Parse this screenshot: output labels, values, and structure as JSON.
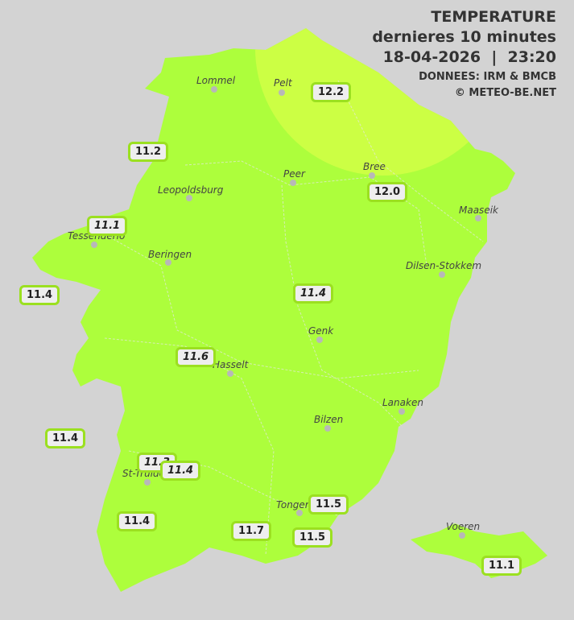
{
  "header": {
    "title": "TEMPERATURE",
    "subtitle": "dernieres 10 minutes",
    "datetime": "18-04-2026  |  23:20",
    "source": "DONNEES: IRM & BMCB",
    "copyright": "© METEO-BE.NET"
  },
  "colors": {
    "background": "#d3d3d3",
    "zone_11_12": "#adfe3c",
    "zone_12_13": "#ccff44",
    "label_border": "#9be020"
  },
  "cities": [
    {
      "name": "Lommel"
    },
    {
      "name": "Pelt"
    },
    {
      "name": "Peer"
    },
    {
      "name": "Bree"
    },
    {
      "name": "Leopoldsburg"
    },
    {
      "name": "Maaseik"
    },
    {
      "name": "Tessenderlo"
    },
    {
      "name": "Beringen"
    },
    {
      "name": "Dilsen-Stokkem"
    },
    {
      "name": "Genk"
    },
    {
      "name": "Hasselt"
    },
    {
      "name": "Lanaken"
    },
    {
      "name": "Bilzen"
    },
    {
      "name": "St-Truiden"
    },
    {
      "name": "Tongeren"
    },
    {
      "name": "Voeren"
    }
  ],
  "readings": [
    {
      "value": "12.2"
    },
    {
      "value": "11.2"
    },
    {
      "value": "12.0"
    },
    {
      "value": "11.1"
    },
    {
      "value": "11.4"
    },
    {
      "value": "11.4"
    },
    {
      "value": "11.6"
    },
    {
      "value": "11.4"
    },
    {
      "value": "11.3"
    },
    {
      "value": "11.4"
    },
    {
      "value": "11.4"
    },
    {
      "value": "11.5"
    },
    {
      "value": "11.7"
    },
    {
      "value": "11.5"
    },
    {
      "value": "11.1"
    }
  ]
}
